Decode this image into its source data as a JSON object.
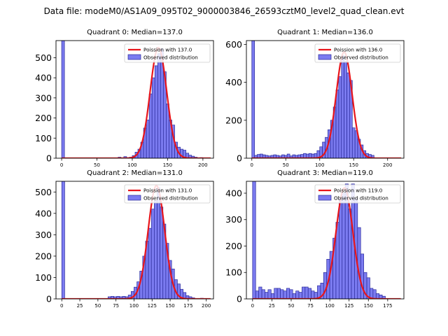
{
  "figure_title": "Data file: modeM0/AS1A09_095T02_9000003846_26593cztM0_level2_quad_clean.evt",
  "colors": {
    "hist_fill": "#7b7bf0",
    "hist_edge": "#2a2a9a",
    "poisson_line": "#e8151b"
  },
  "chart_data": [
    {
      "type": "bar",
      "title": "Quadrant 0: Median=137.0",
      "xlim": [
        -8,
        215
      ],
      "ylim": [
        0,
        585
      ],
      "xticks": [
        0,
        50,
        100,
        150,
        200
      ],
      "yticks": [
        0,
        100,
        200,
        300,
        400,
        500
      ],
      "bin_width": 4,
      "legend": [
        "Poission with 137.0",
        "Observed distribution"
      ],
      "bins": [
        [
          0,
          1000
        ],
        [
          80,
          5
        ],
        [
          88,
          8
        ],
        [
          96,
          5
        ],
        [
          100,
          13
        ],
        [
          104,
          30
        ],
        [
          108,
          45
        ],
        [
          112,
          80
        ],
        [
          116,
          150
        ],
        [
          120,
          190
        ],
        [
          124,
          320
        ],
        [
          128,
          400
        ],
        [
          132,
          460
        ],
        [
          136,
          520
        ],
        [
          140,
          545
        ],
        [
          144,
          430
        ],
        [
          148,
          270
        ],
        [
          152,
          190
        ],
        [
          156,
          165
        ],
        [
          160,
          80
        ],
        [
          164,
          55
        ],
        [
          168,
          45
        ],
        [
          172,
          40
        ],
        [
          176,
          25
        ],
        [
          180,
          15
        ],
        [
          184,
          10
        ],
        [
          188,
          5
        ],
        [
          196,
          3
        ],
        [
          200,
          2
        ]
      ],
      "poisson_mean": 137.0,
      "poisson_scale": 550
    },
    {
      "type": "bar",
      "title": "Quadrant 1: Median=136.0",
      "xlim": [
        -8,
        224
      ],
      "ylim": [
        0,
        620
      ],
      "xticks": [
        0,
        50,
        100,
        150,
        200
      ],
      "yticks": [
        0,
        200,
        400,
        600
      ],
      "bin_width": 4,
      "legend": [
        "Poission with 136.0",
        "Observed distribution"
      ],
      "bins": [
        [
          0,
          1000
        ],
        [
          4,
          15
        ],
        [
          8,
          20
        ],
        [
          12,
          22
        ],
        [
          16,
          18
        ],
        [
          20,
          15
        ],
        [
          24,
          12
        ],
        [
          28,
          15
        ],
        [
          32,
          18
        ],
        [
          36,
          15
        ],
        [
          40,
          12
        ],
        [
          44,
          18
        ],
        [
          48,
          15
        ],
        [
          52,
          22
        ],
        [
          56,
          12
        ],
        [
          60,
          18
        ],
        [
          64,
          15
        ],
        [
          68,
          18
        ],
        [
          72,
          20
        ],
        [
          76,
          25
        ],
        [
          80,
          22
        ],
        [
          84,
          25
        ],
        [
          88,
          22
        ],
        [
          92,
          25
        ],
        [
          96,
          40
        ],
        [
          100,
          60
        ],
        [
          104,
          85
        ],
        [
          108,
          110
        ],
        [
          112,
          150
        ],
        [
          116,
          200
        ],
        [
          120,
          270
        ],
        [
          124,
          360
        ],
        [
          128,
          430
        ],
        [
          132,
          540
        ],
        [
          136,
          510
        ],
        [
          140,
          450
        ],
        [
          144,
          410
        ],
        [
          148,
          160
        ],
        [
          152,
          145
        ],
        [
          156,
          100
        ],
        [
          160,
          70
        ],
        [
          164,
          40
        ],
        [
          168,
          25
        ],
        [
          172,
          20
        ],
        [
          176,
          15
        ]
      ],
      "poisson_mean": 136.0,
      "poisson_scale": 560
    },
    {
      "type": "bar",
      "title": "Quadrant 2: Median=131.0",
      "xlim": [
        -8,
        210
      ],
      "ylim": [
        0,
        550
      ],
      "xticks": [
        0,
        25,
        50,
        75,
        100,
        125,
        150,
        175,
        200
      ],
      "yticks": [
        0,
        100,
        200,
        300,
        400,
        500
      ],
      "bin_width": 4,
      "legend": [
        "Poission with 131.0",
        "Observed distribution"
      ],
      "bins": [
        [
          0,
          1000
        ],
        [
          64,
          10
        ],
        [
          68,
          12
        ],
        [
          72,
          10
        ],
        [
          76,
          12
        ],
        [
          80,
          10
        ],
        [
          84,
          12
        ],
        [
          88,
          10
        ],
        [
          92,
          18
        ],
        [
          96,
          35
        ],
        [
          100,
          55
        ],
        [
          104,
          80
        ],
        [
          108,
          130
        ],
        [
          112,
          200
        ],
        [
          116,
          270
        ],
        [
          120,
          330
        ],
        [
          124,
          420
        ],
        [
          128,
          460
        ],
        [
          132,
          520
        ],
        [
          136,
          430
        ],
        [
          140,
          350
        ],
        [
          144,
          260
        ],
        [
          148,
          180
        ],
        [
          152,
          140
        ],
        [
          156,
          90
        ],
        [
          160,
          70
        ],
        [
          164,
          45
        ],
        [
          168,
          30
        ],
        [
          172,
          15
        ],
        [
          176,
          10
        ],
        [
          180,
          5
        ],
        [
          192,
          3
        ]
      ],
      "poisson_mean": 131.0,
      "poisson_scale": 530
    },
    {
      "type": "bar",
      "title": "Quadrant 3: Median=119.0",
      "xlim": [
        -8,
        196
      ],
      "ylim": [
        0,
        445
      ],
      "xticks": [
        0,
        25,
        50,
        75,
        100,
        125,
        150,
        175
      ],
      "yticks": [
        0,
        100,
        200,
        300,
        400
      ],
      "bin_width": 4,
      "legend": [
        "Poission with 119.0",
        "Observed distribution"
      ],
      "bins": [
        [
          0,
          1000
        ],
        [
          4,
          30
        ],
        [
          8,
          45
        ],
        [
          12,
          35
        ],
        [
          16,
          25
        ],
        [
          20,
          35
        ],
        [
          24,
          20
        ],
        [
          28,
          40
        ],
        [
          32,
          40
        ],
        [
          36,
          35
        ],
        [
          40,
          30
        ],
        [
          44,
          40
        ],
        [
          48,
          35
        ],
        [
          52,
          20
        ],
        [
          56,
          30
        ],
        [
          60,
          25
        ],
        [
          64,
          45
        ],
        [
          68,
          45
        ],
        [
          72,
          40
        ],
        [
          76,
          30
        ],
        [
          80,
          25
        ],
        [
          84,
          50
        ],
        [
          88,
          60
        ],
        [
          92,
          100
        ],
        [
          96,
          150
        ],
        [
          100,
          180
        ],
        [
          104,
          230
        ],
        [
          108,
          290
        ],
        [
          112,
          380
        ],
        [
          116,
          400
        ],
        [
          120,
          435
        ],
        [
          124,
          340
        ],
        [
          128,
          435
        ],
        [
          132,
          380
        ],
        [
          136,
          270
        ],
        [
          140,
          170
        ],
        [
          144,
          100
        ],
        [
          148,
          80
        ],
        [
          152,
          40
        ],
        [
          156,
          35
        ],
        [
          160,
          20
        ],
        [
          164,
          15
        ],
        [
          168,
          10
        ]
      ],
      "poisson_mean": 119.0,
      "poisson_scale": 420
    }
  ]
}
